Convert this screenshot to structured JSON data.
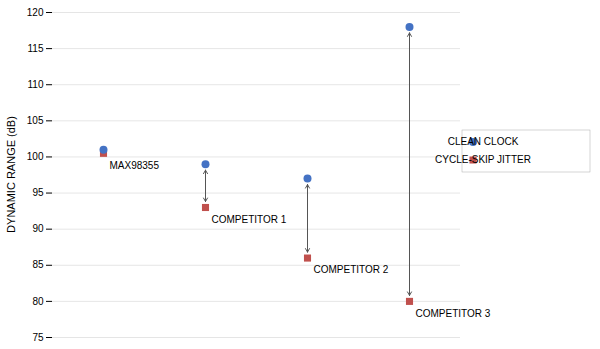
{
  "chart_data": {
    "type": "scatter",
    "categories": [
      "MAX98355",
      "COMPETITOR 1",
      "COMPETITOR 2",
      "COMPETITOR 3"
    ],
    "series": [
      {
        "name": "CLEAN CLOCK",
        "color": "#4472C4",
        "marker": "circle",
        "values": [
          101.0,
          99.0,
          97.0,
          118.0
        ]
      },
      {
        "name": "CYCLE-SKIP JITTER",
        "color": "#C0504D",
        "marker": "square",
        "values": [
          100.5,
          93.0,
          86.0,
          80.0
        ]
      }
    ],
    "ylabel": "DYNAMIC RANGE (dB)",
    "ylim": [
      75,
      120
    ],
    "yticks": [
      75,
      80,
      85,
      90,
      95,
      100,
      105,
      110,
      115,
      120
    ],
    "grid": true,
    "legend": "right",
    "tick_labels": "y"
  }
}
